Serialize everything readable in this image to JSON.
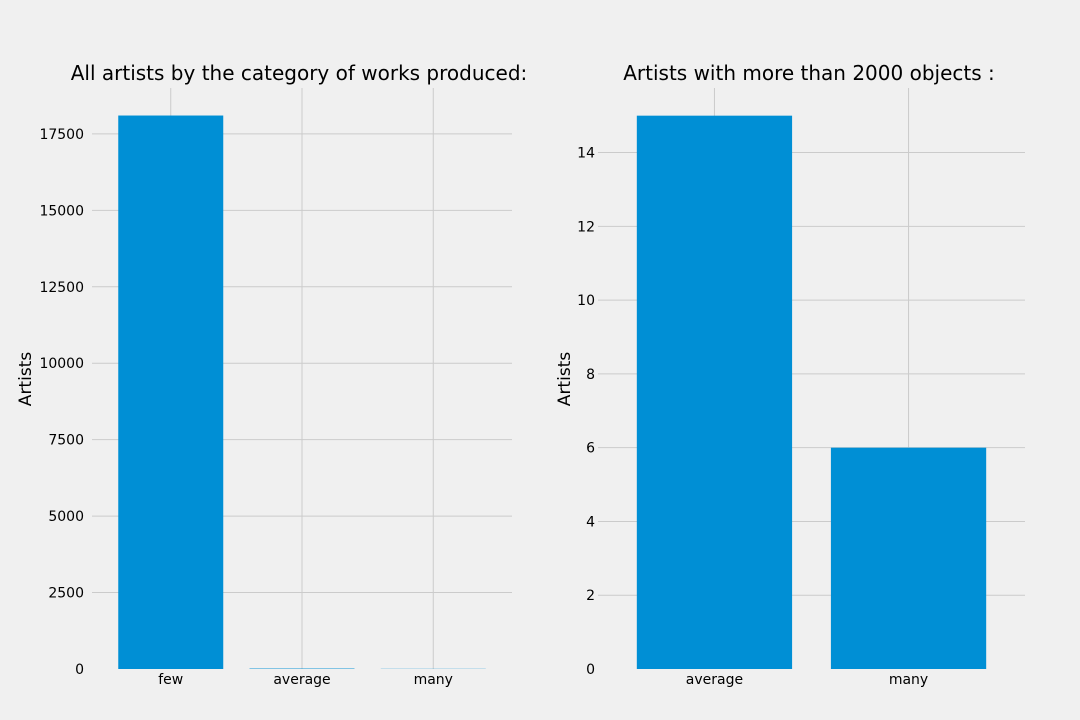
{
  "chart_data": [
    {
      "type": "bar",
      "title": "All artists by the category of works produced:",
      "xlabel": "",
      "ylabel": "Artists",
      "categories": [
        "few",
        "average",
        "many"
      ],
      "values": [
        18100,
        15,
        6
      ],
      "yticks": [
        0,
        2500,
        5000,
        7500,
        10000,
        12500,
        15000,
        17500
      ],
      "ylim": [
        0,
        19000
      ],
      "grid": true,
      "bar_color": "#008fd5"
    },
    {
      "type": "bar",
      "title": "Artists with more than 2000 objects :",
      "xlabel": "",
      "ylabel": "Artists",
      "categories": [
        "average",
        "many"
      ],
      "values": [
        15,
        6
      ],
      "yticks": [
        0,
        2,
        4,
        6,
        8,
        10,
        12,
        14
      ],
      "ylim": [
        0,
        15.75
      ],
      "grid": true,
      "bar_color": "#008fd5"
    }
  ]
}
